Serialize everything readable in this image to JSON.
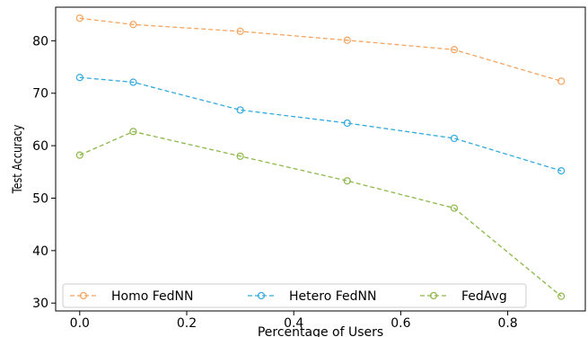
{
  "chart_data": {
    "type": "line",
    "xlabel": "Percentage of Users",
    "ylabel": "Test Accuracy",
    "xlim": [
      -0.045,
      0.945
    ],
    "ylim": [
      28.5,
      86.4
    ],
    "x_ticks": [
      0.0,
      0.2,
      0.4,
      0.6,
      0.8
    ],
    "x_tick_labels": [
      "0.0",
      "0.2",
      "0.4",
      "0.6",
      "0.8"
    ],
    "y_ticks": [
      30,
      40,
      50,
      60,
      70,
      80
    ],
    "y_tick_labels": [
      "30",
      "40",
      "50",
      "60",
      "70",
      "80"
    ],
    "grid": false,
    "legend_position": "bottom",
    "series": [
      {
        "name": "Homo FedNN",
        "color": "#f4a460",
        "x": [
          0.0,
          0.1,
          0.3,
          0.5,
          0.7,
          0.9
        ],
        "values": [
          84.3,
          83.1,
          81.8,
          80.1,
          78.3,
          72.3
        ]
      },
      {
        "name": "Hetero FedNN",
        "color": "#33aadd",
        "x": [
          0.0,
          0.1,
          0.3,
          0.5,
          0.7,
          0.9
        ],
        "values": [
          73.0,
          72.1,
          66.8,
          64.3,
          61.4,
          55.2
        ]
      },
      {
        "name": "FedAvg",
        "color": "#8db84a",
        "x": [
          0.0,
          0.1,
          0.3,
          0.5,
          0.7,
          0.9
        ],
        "values": [
          58.2,
          62.7,
          58.0,
          53.3,
          48.1,
          31.3
        ]
      }
    ]
  }
}
